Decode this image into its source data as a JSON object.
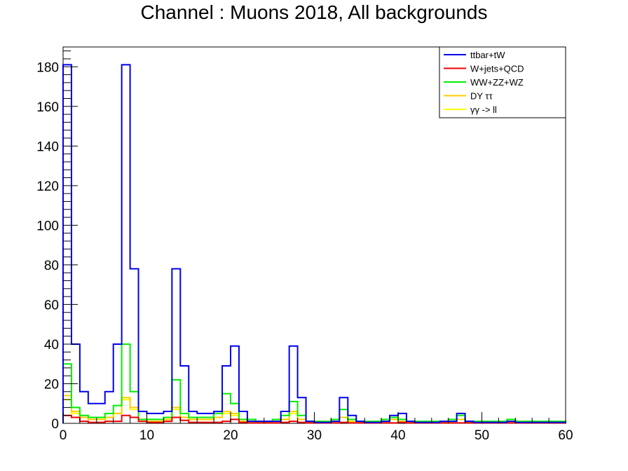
{
  "chart_data": {
    "type": "line",
    "title": "Channel : Muons 2018, All backgrounds",
    "xlabel": "",
    "ylabel": "",
    "xlim": [
      0,
      60
    ],
    "ylim": [
      0,
      190
    ],
    "bin_edges": [
      0,
      1,
      2,
      3,
      4,
      5,
      6,
      7,
      8,
      9,
      10,
      11,
      12,
      13,
      14,
      15,
      16,
      17,
      18,
      19,
      20,
      21,
      22,
      23,
      24,
      25,
      26,
      27,
      28,
      29,
      30,
      31,
      32,
      33,
      34,
      35,
      36,
      37,
      38,
      39,
      40,
      41,
      42,
      43,
      44,
      45,
      46,
      47,
      48,
      49,
      50,
      51,
      52,
      53,
      54,
      55,
      56,
      57,
      58,
      59,
      60
    ],
    "x_ticks": [
      0,
      10,
      20,
      30,
      40,
      50,
      60
    ],
    "x_tick_labels": [
      "0",
      "10",
      "20",
      "30",
      "40",
      "50",
      "60"
    ],
    "y_ticks": [
      0,
      20,
      40,
      60,
      80,
      100,
      120,
      140,
      160,
      180
    ],
    "y_tick_labels": [
      "0",
      "20",
      "40",
      "60",
      "80",
      "100",
      "120",
      "140",
      "160",
      "180"
    ],
    "legend_position": "top-right",
    "series": [
      {
        "name": "ttbar+tW",
        "color": "#0000ee",
        "values": [
          181,
          40,
          16,
          10,
          10,
          16,
          40,
          181,
          78,
          6,
          5,
          5,
          6,
          78,
          29,
          6,
          5,
          5,
          6,
          29,
          39,
          6,
          1,
          1,
          1,
          1,
          6,
          39,
          13,
          1,
          0.5,
          0.5,
          1,
          13,
          4,
          1,
          0.5,
          0.5,
          1,
          4,
          5,
          1,
          0.5,
          0.5,
          0.5,
          1,
          1,
          5,
          1,
          0.5,
          0.5,
          0.5,
          0.5,
          1,
          0.5,
          0.5,
          0.5,
          0.5,
          0.5,
          0.5
        ]
      },
      {
        "name": "W+jets+QCD",
        "color": "#ee0000",
        "values": [
          4,
          3,
          1,
          0.5,
          0.5,
          1,
          1,
          4,
          3,
          1,
          0.5,
          0.5,
          1,
          3,
          1.5,
          0.5,
          0.5,
          0.5,
          0.5,
          1,
          2,
          0.5,
          0.2,
          0.2,
          0.2,
          0.2,
          0.5,
          1,
          0.5,
          0.2,
          0.2,
          0.2,
          0.2,
          0.5,
          0.2,
          0.2,
          0.2,
          0.2,
          0.2,
          0.2,
          0.5,
          0.2,
          0.2,
          0.2,
          0.2,
          0.2,
          0.2,
          0.2,
          0.2,
          0.2,
          0.2,
          0.2,
          0.2,
          0.2,
          0.2,
          0.2,
          0.2,
          0.2,
          0.2,
          0.2
        ]
      },
      {
        "name": "WW+ZZ+WZ",
        "color": "#00ee00",
        "values": [
          30,
          8,
          4,
          3,
          3,
          5,
          9,
          40,
          16,
          2,
          2,
          2,
          3,
          22,
          5,
          3,
          3,
          3,
          5,
          15,
          10,
          2,
          2,
          1,
          1,
          2,
          4,
          11,
          4,
          1,
          1,
          1,
          2,
          7,
          2,
          1,
          1,
          1,
          2,
          3,
          2,
          1,
          1,
          1,
          1,
          1,
          2,
          4,
          1,
          1,
          1,
          1,
          1,
          2,
          1,
          1,
          1,
          1,
          1,
          1
        ]
      },
      {
        "name": "DY ττ",
        "color": "#ffcc00",
        "values": [
          14,
          6,
          3,
          2,
          2,
          3,
          5,
          13,
          8,
          2,
          1,
          1,
          2,
          8,
          3,
          2,
          2,
          2,
          3,
          6,
          5,
          1,
          1,
          0.5,
          0.5,
          1,
          2,
          6,
          2,
          0.5,
          0.5,
          0.5,
          1,
          3,
          1,
          0.5,
          0.5,
          0.5,
          1,
          2,
          1,
          0.5,
          0.5,
          0.5,
          0.5,
          0.5,
          1,
          2,
          0.5,
          0.5,
          0.5,
          0.5,
          0.5,
          1,
          0.5,
          0.5,
          0.5,
          0.5,
          0.5,
          0.5
        ]
      },
      {
        "name": "γγ -> ll",
        "color": "#ffff00",
        "values": [
          12,
          5,
          3,
          2,
          2,
          3,
          5,
          12,
          7,
          2,
          1,
          1,
          2,
          7,
          3,
          2,
          2,
          2,
          3,
          5,
          4,
          1,
          1,
          0.5,
          0.5,
          1,
          2,
          5,
          2,
          0.5,
          0.5,
          0.5,
          1,
          3,
          1,
          0.5,
          0.5,
          0.5,
          1,
          2,
          1,
          0.5,
          0.5,
          0.5,
          0.5,
          0.5,
          1,
          2,
          0.5,
          0.5,
          0.5,
          0.5,
          0.5,
          1,
          0.5,
          0.5,
          0.5,
          0.5,
          0.5,
          0.5
        ]
      }
    ]
  }
}
